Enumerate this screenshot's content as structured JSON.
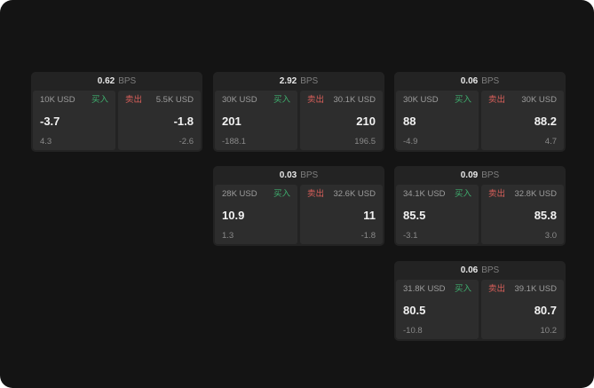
{
  "labels": {
    "bps": "BPS",
    "buy": "买入",
    "sell": "卖出"
  },
  "colors": {
    "buy": "#3fae6e",
    "sell": "#d95f5a",
    "panel_bg": "#141414",
    "card_bg": "#232323",
    "tile_bg": "#2d2d2d"
  },
  "cards": [
    {
      "pos": "r1c1",
      "bps": "0.62",
      "buy": {
        "amount": "10K USD",
        "price": "-3.7",
        "delta": "4.3"
      },
      "sell": {
        "amount": "5.5K USD",
        "price": "-1.8",
        "delta": "-2.6"
      }
    },
    {
      "pos": "r1c2",
      "bps": "2.92",
      "buy": {
        "amount": "30K USD",
        "price": "201",
        "delta": "-188.1"
      },
      "sell": {
        "amount": "30.1K USD",
        "price": "210",
        "delta": "196.5"
      }
    },
    {
      "pos": "r1c3",
      "bps": "0.06",
      "buy": {
        "amount": "30K USD",
        "price": "88",
        "delta": "-4.9"
      },
      "sell": {
        "amount": "30K USD",
        "price": "88.2",
        "delta": "4.7"
      }
    },
    {
      "pos": "r2c2",
      "bps": "0.03",
      "buy": {
        "amount": "28K USD",
        "price": "10.9",
        "delta": "1.3"
      },
      "sell": {
        "amount": "32.6K USD",
        "price": "11",
        "delta": "-1.8"
      }
    },
    {
      "pos": "r2c3",
      "bps": "0.09",
      "buy": {
        "amount": "34.1K USD",
        "price": "85.5",
        "delta": "-3.1"
      },
      "sell": {
        "amount": "32.8K USD",
        "price": "85.8",
        "delta": "3.0"
      }
    },
    {
      "pos": "r3c3",
      "bps": "0.06",
      "buy": {
        "amount": "31.8K USD",
        "price": "80.5",
        "delta": "-10.8"
      },
      "sell": {
        "amount": "39.1K USD",
        "price": "80.7",
        "delta": "10.2"
      }
    }
  ]
}
